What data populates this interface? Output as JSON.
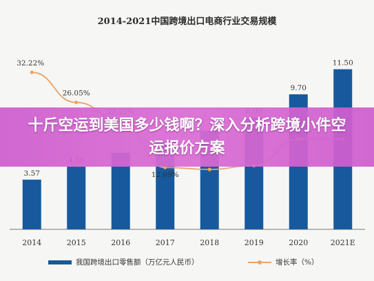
{
  "chart_data": {
    "type": "bar",
    "title": "2014-2021中国跨境出口电商行业交易规模",
    "categories": [
      "2014",
      "2015",
      "2016",
      "2017",
      "2018",
      "2019",
      "2020",
      "2021E"
    ],
    "series": [
      {
        "name": "我国跨境出口零售额（万亿元人民币）",
        "type": "bar",
        "values": [
          3.57,
          4.5,
          5.5,
          6.3,
          7.1,
          8.03,
          9.7,
          11.5
        ],
        "labels": [
          "3.57",
          "4.50",
          "",
          "",
          "",
          "8.03",
          "9.70",
          "11.50"
        ],
        "color": "#17599c"
      },
      {
        "name": "增长率（%）",
        "type": "line",
        "values": [
          32.22,
          26.05,
          22.22,
          12.69,
          12.3,
          13.1,
          18.55,
          18.56
        ],
        "labels": [
          "32.22%",
          "26.05%",
          "22.22%",
          "12.69%",
          "",
          "",
          "18.55%",
          ""
        ],
        "color": "#e8a36a"
      }
    ],
    "ylim": [
      0,
      14
    ],
    "y2lim": [
      0,
      40
    ],
    "grid": false,
    "legend": "bottom"
  },
  "overlay": {
    "text": "十斤空运到美国多少钱啊？深入分析跨境小件空运报价方案"
  }
}
